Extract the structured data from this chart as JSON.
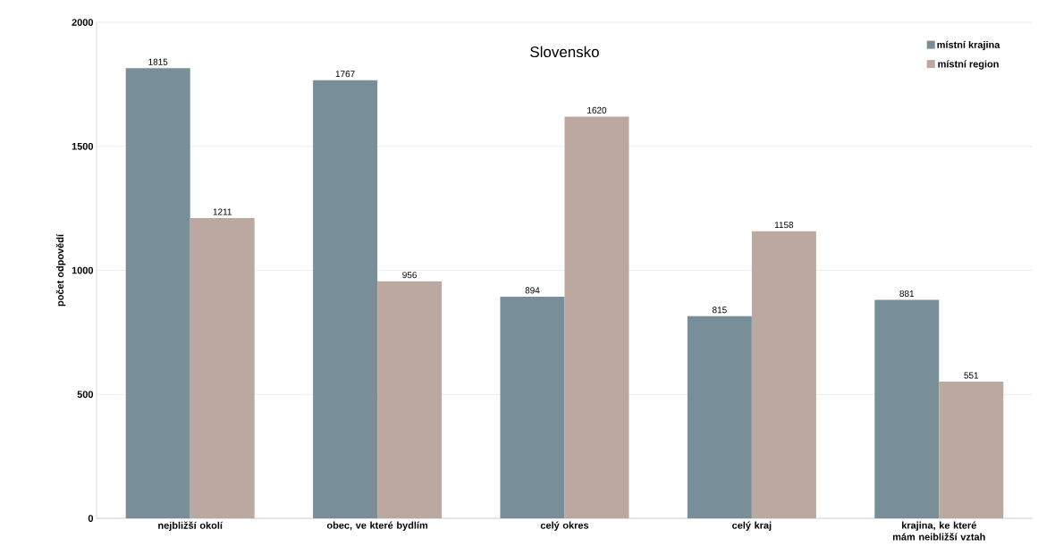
{
  "chart_data": {
    "type": "bar",
    "title": "Slovensko",
    "ylabel": "počet odpovědí",
    "categories": [
      "nejbližší okolí",
      "obec, ve které bydlím",
      "celý okres",
      "celý kraj",
      "krajina, ke které mám neibližší vztah"
    ],
    "series": [
      {
        "name": "místní krajina",
        "color": "#788f9a",
        "values": [
          1815,
          1767,
          894,
          815,
          881
        ]
      },
      {
        "name": "místní region",
        "color": "#bba9a1",
        "values": [
          1211,
          956,
          1620,
          1158,
          551
        ]
      }
    ],
    "ylim": [
      0,
      2000
    ],
    "yticks": [
      0,
      500,
      1000,
      1500,
      2000
    ],
    "grid": "y",
    "legend": "top right",
    "data_labels": true
  }
}
